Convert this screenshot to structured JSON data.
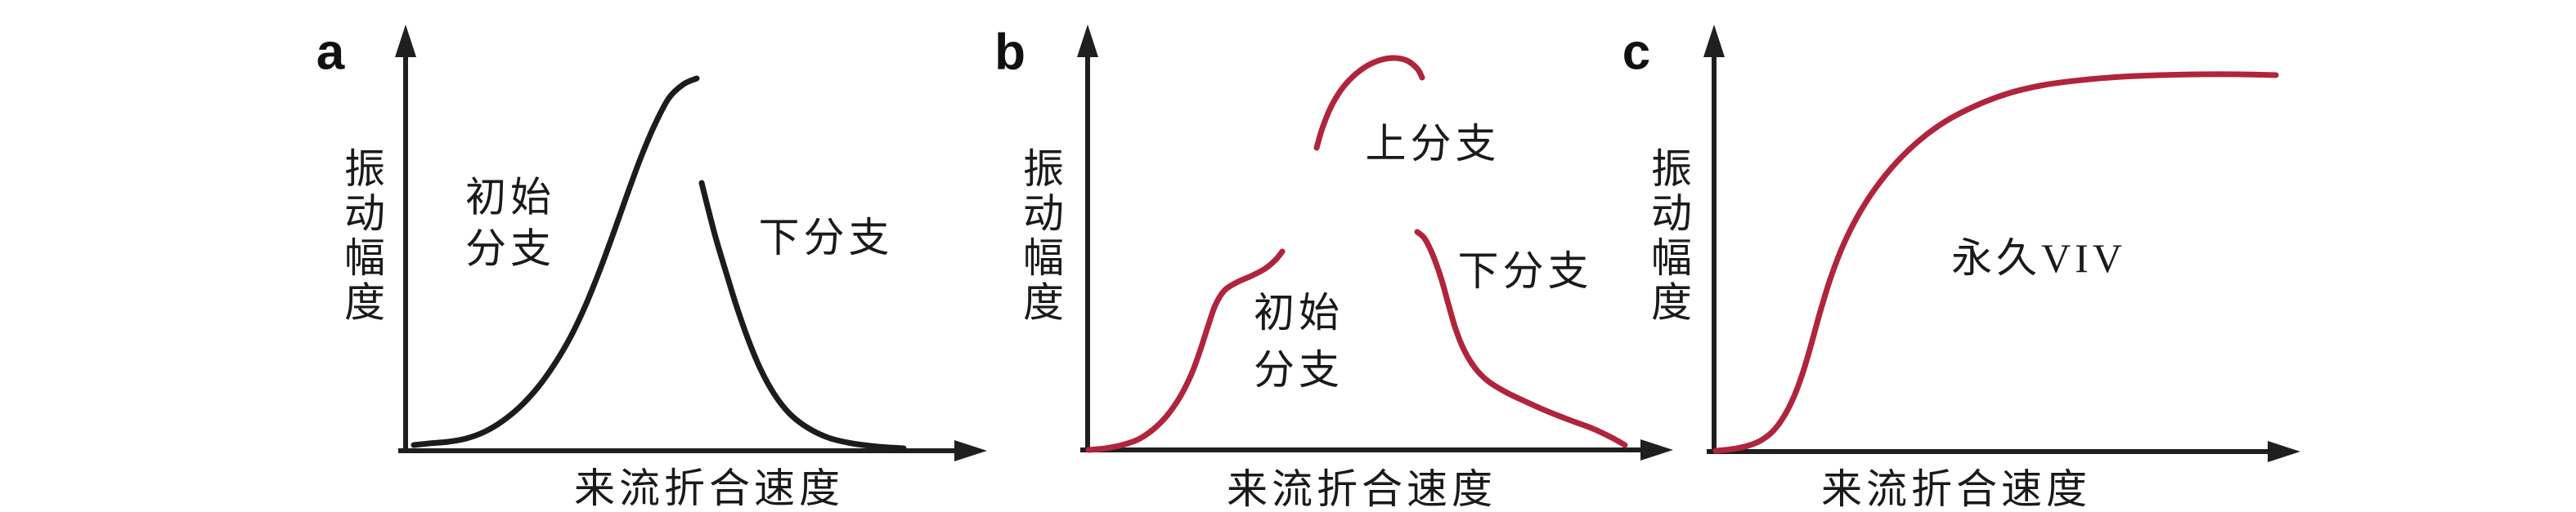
{
  "figure": {
    "background": "#ffffff",
    "text_color": "#1a1a1a",
    "axis_color": "#1f1f1f",
    "black_curve_color": "#1c1c1c",
    "red_curve_color": "#b0243c"
  },
  "chart_data": [
    {
      "type": "line",
      "panel": "a",
      "letter": "a",
      "letter_pos": [
        404,
        64
      ],
      "title": "",
      "xlabel": "来流折合速度",
      "ylabel": "振动幅度",
      "grid": false,
      "axes": {
        "y_axis_x": 496,
        "y_axis_top": 30,
        "x_axis_y": 552,
        "x_axis_left": 487,
        "x_axis_right": 1207
      },
      "ylabel_x": 446,
      "xlabel_pos": [
        867,
        598
      ],
      "annotations": [
        {
          "name": "initial-branch-label",
          "lines": [
            "初始",
            "分支"
          ],
          "x": 624,
          "y": 273,
          "line_gap": 63
        },
        {
          "name": "lower-branch-label",
          "lines": [
            "下分支"
          ],
          "x": 1010,
          "y": 291,
          "line_gap": 0
        }
      ],
      "series": [
        {
          "name": "初始分支",
          "color": "#1c1c1c",
          "stroke_width": 7,
          "points": [
            [
              506,
              545
            ],
            [
              525,
              543
            ],
            [
              548,
              541
            ],
            [
              570,
              537
            ],
            [
              592,
              529
            ],
            [
              614,
              516
            ],
            [
              636,
              498
            ],
            [
              658,
              474
            ],
            [
              678,
              446
            ],
            [
              698,
              412
            ],
            [
              716,
              374
            ],
            [
              733,
              332
            ],
            [
              750,
              286
            ],
            [
              767,
              238
            ],
            [
              784,
              192
            ],
            [
              801,
              152
            ],
            [
              818,
              120
            ],
            [
              836,
              103
            ],
            [
              852,
              96
            ]
          ]
        },
        {
          "name": "下分支",
          "color": "#1c1c1c",
          "stroke_width": 7,
          "points": [
            [
              858,
              224
            ],
            [
              866,
              256
            ],
            [
              876,
              294
            ],
            [
              888,
              334
            ],
            [
              901,
              376
            ],
            [
              915,
              416
            ],
            [
              930,
              452
            ],
            [
              947,
              483
            ],
            [
              966,
              507
            ],
            [
              988,
              524
            ],
            [
              1013,
              536
            ],
            [
              1042,
              543
            ],
            [
              1074,
              547
            ],
            [
              1105,
              549
            ]
          ]
        }
      ]
    },
    {
      "type": "line",
      "panel": "b",
      "letter": "b",
      "letter_pos": [
        1235,
        64
      ],
      "title": "",
      "xlabel": "来流折合速度",
      "ylabel": "振动幅度",
      "grid": false,
      "axes": {
        "y_axis_x": 1330,
        "y_axis_top": 30,
        "x_axis_y": 551,
        "x_axis_left": 1321,
        "x_axis_right": 2046
      },
      "ylabel_x": 1276,
      "xlabel_pos": [
        1665,
        599
      ],
      "annotations": [
        {
          "name": "upper-branch-label",
          "lines": [
            "上分支"
          ],
          "x": 1752,
          "y": 176,
          "line_gap": 0
        },
        {
          "name": "initial-branch-label",
          "lines": [
            "初始",
            "分支"
          ],
          "x": 1588,
          "y": 418,
          "line_gap": 70
        },
        {
          "name": "lower-branch-label",
          "lines": [
            "下分支"
          ],
          "x": 1865,
          "y": 332,
          "line_gap": 0
        }
      ],
      "series": [
        {
          "name": "初始分支",
          "color": "#b0243c",
          "stroke_width": 7,
          "points": [
            [
              1331,
              551
            ],
            [
              1352,
              549
            ],
            [
              1372,
              545
            ],
            [
              1392,
              538
            ],
            [
              1410,
              526
            ],
            [
              1427,
              509
            ],
            [
              1443,
              486
            ],
            [
              1457,
              458
            ],
            [
              1468,
              428
            ],
            [
              1477,
              400
            ],
            [
              1486,
              374
            ],
            [
              1497,
              356
            ],
            [
              1512,
              346
            ],
            [
              1530,
              338
            ],
            [
              1547,
              329
            ],
            [
              1560,
              318
            ],
            [
              1568,
              308
            ]
          ]
        },
        {
          "name": "上分支",
          "color": "#b0243c",
          "stroke_width": 7,
          "points": [
            [
              1610,
              181
            ],
            [
              1617,
              157
            ],
            [
              1628,
              130
            ],
            [
              1643,
              106
            ],
            [
              1661,
              88
            ],
            [
              1681,
              76
            ],
            [
              1702,
              71
            ],
            [
              1720,
              74
            ],
            [
              1733,
              84
            ],
            [
              1739,
              95
            ]
          ]
        },
        {
          "name": "下分支",
          "color": "#b0243c",
          "stroke_width": 7,
          "points": [
            [
              1733,
              284
            ],
            [
              1742,
              292
            ],
            [
              1752,
              312
            ],
            [
              1762,
              340
            ],
            [
              1771,
              372
            ],
            [
              1780,
              403
            ],
            [
              1791,
              430
            ],
            [
              1804,
              451
            ],
            [
              1820,
              467
            ],
            [
              1841,
              480
            ],
            [
              1866,
              492
            ],
            [
              1893,
              504
            ],
            [
              1921,
              515
            ],
            [
              1948,
              525
            ],
            [
              1971,
              536
            ],
            [
              1987,
              545
            ]
          ]
        }
      ]
    },
    {
      "type": "line",
      "panel": "c",
      "letter": "c",
      "letter_pos": [
        2001,
        64
      ],
      "title": "",
      "xlabel": "来流折合速度",
      "ylabel": "振动幅度",
      "grid": false,
      "axes": {
        "y_axis_x": 2096,
        "y_axis_top": 30,
        "x_axis_y": 553,
        "x_axis_left": 2087,
        "x_axis_right": 2813
      },
      "ylabel_x": 2044,
      "xlabel_pos": [
        2392,
        599
      ],
      "annotations": [
        {
          "name": "permanent-viv-label",
          "lines": [
            "永久VIV"
          ],
          "x": 2493,
          "y": 316,
          "line_gap": 0
        }
      ],
      "series": [
        {
          "name": "永久VIV",
          "color": "#b0243c",
          "stroke_width": 7,
          "points": [
            [
              2098,
              552
            ],
            [
              2118,
              550
            ],
            [
              2137,
              546
            ],
            [
              2154,
              539
            ],
            [
              2169,
              527
            ],
            [
              2182,
              509
            ],
            [
              2194,
              485
            ],
            [
              2205,
              455
            ],
            [
              2215,
              421
            ],
            [
              2226,
              381
            ],
            [
              2239,
              339
            ],
            [
              2254,
              300
            ],
            [
              2272,
              264
            ],
            [
              2293,
              231
            ],
            [
              2318,
              200
            ],
            [
              2347,
              172
            ],
            [
              2380,
              148
            ],
            [
              2417,
              129
            ],
            [
              2457,
              114
            ],
            [
              2500,
              104
            ],
            [
              2546,
              98
            ],
            [
              2594,
              94
            ],
            [
              2642,
              92
            ],
            [
              2690,
              91
            ],
            [
              2737,
              91
            ],
            [
              2783,
              92
            ]
          ]
        }
      ]
    }
  ]
}
